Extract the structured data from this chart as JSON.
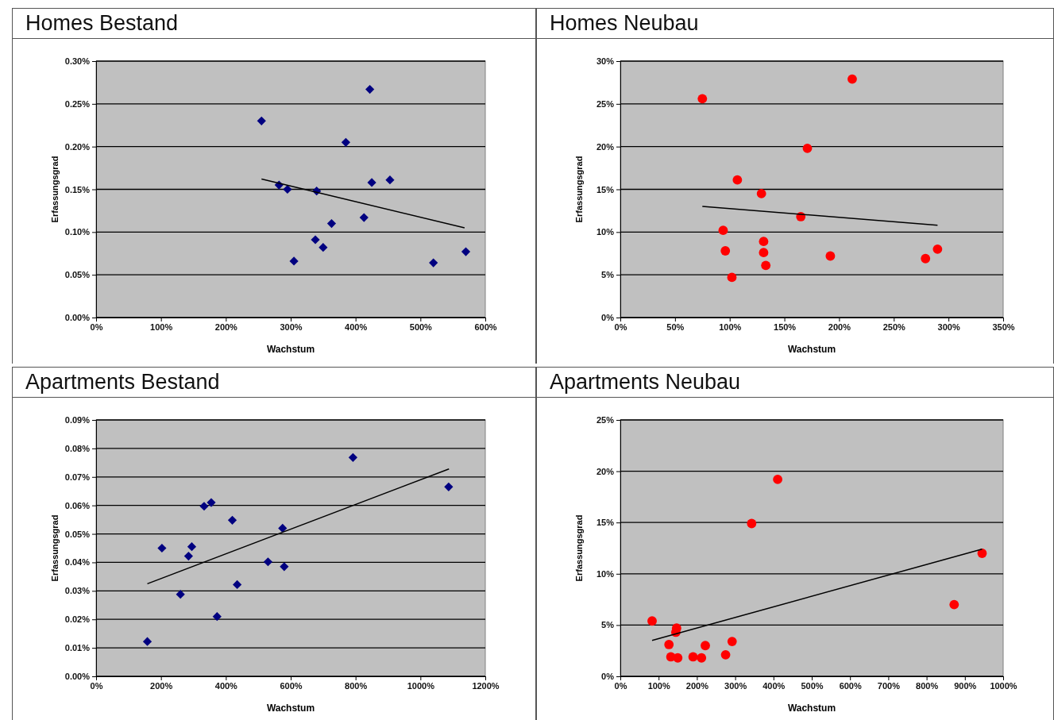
{
  "chart_data": [
    {
      "type": "scatter",
      "title": "Homes Bestand",
      "xlabel": "Wachstum",
      "ylabel": "Erfassungsgrad",
      "grid": "y",
      "xlim": [
        0,
        600
      ],
      "xticks": [
        {
          "value": 0,
          "label": "0%"
        },
        {
          "value": 100,
          "label": "100%"
        },
        {
          "value": 200,
          "label": "200%"
        },
        {
          "value": 300,
          "label": "300%"
        },
        {
          "value": 400,
          "label": "400%"
        },
        {
          "value": 500,
          "label": "500%"
        },
        {
          "value": 600,
          "label": "600%"
        }
      ],
      "ylim": [
        0,
        0.3
      ],
      "yticks": [
        {
          "value": 0,
          "label": "0.00%"
        },
        {
          "value": 0.05,
          "label": "0.05%"
        },
        {
          "value": 0.1,
          "label": "0.10%"
        },
        {
          "value": 0.15,
          "label": "0.15%"
        },
        {
          "value": 0.2,
          "label": "0.20%"
        },
        {
          "value": 0.25,
          "label": "0.25%"
        },
        {
          "value": 0.3,
          "label": "0.30%"
        }
      ],
      "series": [
        {
          "marker": "diamond",
          "color": "#000080",
          "x": [
            255,
            422,
            385,
            282,
            295,
            340,
            425,
            453,
            413,
            363,
            338,
            350,
            305,
            520,
            570
          ],
          "values": [
            0.23,
            0.267,
            0.205,
            0.155,
            0.15,
            0.148,
            0.158,
            0.161,
            0.117,
            0.11,
            0.091,
            0.082,
            0.066,
            0.064,
            0.077
          ]
        },
        {
          "type": "line",
          "marker": "none",
          "color": "#000000",
          "x": [
            255,
            568
          ],
          "values": [
            0.162,
            0.105
          ]
        }
      ]
    },
    {
      "type": "scatter",
      "title": "Homes Neubau",
      "xlabel": "Wachstum",
      "ylabel": "Erfassungsgrad",
      "grid": "y",
      "xlim": [
        0,
        350
      ],
      "xticks": [
        {
          "value": 0,
          "label": "0%"
        },
        {
          "value": 50,
          "label": "50%"
        },
        {
          "value": 100,
          "label": "100%"
        },
        {
          "value": 150,
          "label": "150%"
        },
        {
          "value": 200,
          "label": "200%"
        },
        {
          "value": 250,
          "label": "250%"
        },
        {
          "value": 300,
          "label": "300%"
        },
        {
          "value": 350,
          "label": "350%"
        }
      ],
      "ylim": [
        0,
        30
      ],
      "yticks": [
        {
          "value": 0,
          "label": "0%"
        },
        {
          "value": 5,
          "label": "5%"
        },
        {
          "value": 10,
          "label": "10%"
        },
        {
          "value": 15,
          "label": "15%"
        },
        {
          "value": 20,
          "label": "20%"
        },
        {
          "value": 25,
          "label": "25%"
        },
        {
          "value": 30,
          "label": "30%"
        }
      ],
      "series": [
        {
          "marker": "circle",
          "color": "#ff0000",
          "x": [
            75,
            212,
            171,
            107,
            129,
            165,
            94,
            96,
            131,
            131,
            133,
            102,
            192,
            279,
            290
          ],
          "values": [
            25.6,
            27.9,
            19.8,
            16.1,
            14.5,
            11.8,
            10.2,
            7.8,
            8.9,
            7.6,
            6.1,
            4.7,
            7.2,
            6.9,
            8.0
          ]
        },
        {
          "type": "line",
          "marker": "none",
          "color": "#000000",
          "x": [
            75,
            290
          ],
          "values": [
            13.0,
            10.8
          ]
        }
      ]
    },
    {
      "type": "scatter",
      "title": "Apartments Bestand",
      "xlabel": "Wachstum",
      "ylabel": "Erfassungsgrad",
      "grid": "y",
      "xlim": [
        0,
        1200
      ],
      "xticks": [
        {
          "value": 0,
          "label": "0%"
        },
        {
          "value": 200,
          "label": "200%"
        },
        {
          "value": 400,
          "label": "400%"
        },
        {
          "value": 600,
          "label": "600%"
        },
        {
          "value": 800,
          "label": "800%"
        },
        {
          "value": 1000,
          "label": "1000%"
        },
        {
          "value": 1200,
          "label": "1200%"
        }
      ],
      "ylim": [
        0,
        0.09
      ],
      "yticks": [
        {
          "value": 0,
          "label": "0.00%"
        },
        {
          "value": 0.01,
          "label": "0.01%"
        },
        {
          "value": 0.02,
          "label": "0.02%"
        },
        {
          "value": 0.03,
          "label": "0.03%"
        },
        {
          "value": 0.04,
          "label": "0.04%"
        },
        {
          "value": 0.05,
          "label": "0.05%"
        },
        {
          "value": 0.06,
          "label": "0.06%"
        },
        {
          "value": 0.07,
          "label": "0.07%"
        },
        {
          "value": 0.08,
          "label": "0.08%"
        },
        {
          "value": 0.09,
          "label": "0.09%"
        }
      ],
      "series": [
        {
          "marker": "diamond",
          "color": "#000080",
          "x": [
            158,
            203,
            260,
            285,
            295,
            333,
            355,
            373,
            420,
            435,
            530,
            575,
            580,
            792,
            1087
          ],
          "values": [
            0.0122,
            0.045,
            0.0288,
            0.0422,
            0.0455,
            0.0597,
            0.061,
            0.021,
            0.0548,
            0.0322,
            0.0402,
            0.052,
            0.0385,
            0.0768,
            0.0665
          ]
        },
        {
          "type": "line",
          "marker": "none",
          "color": "#000000",
          "x": [
            158,
            1088
          ],
          "values": [
            0.0325,
            0.0728
          ]
        }
      ]
    },
    {
      "type": "scatter",
      "title": "Apartments Neubau",
      "xlabel": "Wachstum",
      "ylabel": "Erfassungsgrad",
      "grid": "y",
      "xlim": [
        0,
        1000
      ],
      "xticks": [
        {
          "value": 0,
          "label": "0%"
        },
        {
          "value": 100,
          "label": "100%"
        },
        {
          "value": 200,
          "label": "200%"
        },
        {
          "value": 300,
          "label": "300%"
        },
        {
          "value": 400,
          "label": "400%"
        },
        {
          "value": 500,
          "label": "500%"
        },
        {
          "value": 600,
          "label": "600%"
        },
        {
          "value": 700,
          "label": "700%"
        },
        {
          "value": 800,
          "label": "800%"
        },
        {
          "value": 900,
          "label": "900%"
        },
        {
          "value": 1000,
          "label": "1000%"
        }
      ],
      "ylim": [
        0,
        25
      ],
      "yticks": [
        {
          "value": 0,
          "label": "0%"
        },
        {
          "value": 5,
          "label": "5%"
        },
        {
          "value": 10,
          "label": "10%"
        },
        {
          "value": 15,
          "label": "15%"
        },
        {
          "value": 20,
          "label": "20%"
        },
        {
          "value": 25,
          "label": "25%"
        }
      ],
      "series": [
        {
          "marker": "circle",
          "color": "#ff0000",
          "x": [
            83,
            127,
            132,
            145,
            147,
            150,
            190,
            212,
            222,
            275,
            292,
            343,
            411,
            872,
            945
          ],
          "values": [
            5.4,
            3.1,
            1.9,
            4.3,
            4.7,
            1.8,
            1.9,
            1.8,
            3.0,
            2.1,
            3.4,
            14.9,
            19.2,
            7.0,
            12.0
          ]
        },
        {
          "type": "line",
          "marker": "none",
          "color": "#000000",
          "x": [
            83,
            945
          ],
          "values": [
            3.5,
            12.4
          ]
        }
      ]
    }
  ]
}
